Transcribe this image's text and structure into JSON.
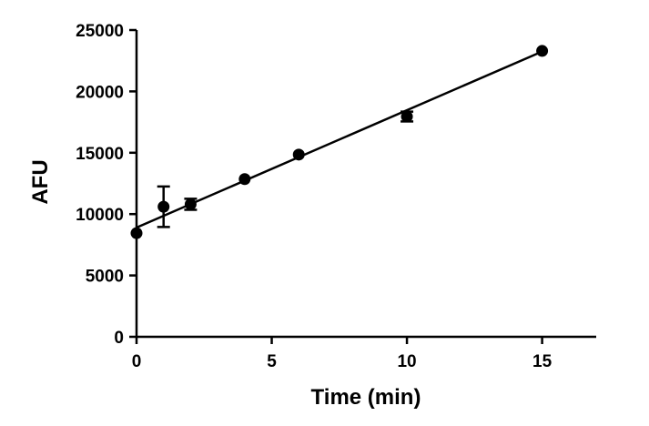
{
  "chart_data": {
    "type": "scatter",
    "title": "",
    "xlabel": "Time (min)",
    "ylabel": "AFU",
    "xlim": [
      0,
      17
    ],
    "ylim": [
      0,
      25000
    ],
    "xticks": [
      0,
      5,
      10,
      15
    ],
    "yticks": [
      0,
      5000,
      10000,
      15000,
      20000,
      25000
    ],
    "x_tick_labels": [
      "0",
      "5",
      "10",
      "15"
    ],
    "y_tick_labels": [
      "0",
      "5000",
      "10000",
      "15000",
      "20000",
      "25000"
    ],
    "grid": false,
    "legend": "none",
    "series": [
      {
        "x": [
          0,
          1,
          2,
          4,
          6,
          10,
          15
        ],
        "y": [
          8450,
          10600,
          10800,
          12850,
          14850,
          17950,
          23300
        ],
        "error": [
          0,
          1650,
          450,
          0,
          0,
          400,
          0
        ],
        "color": "#000000"
      }
    ],
    "fit_line": {
      "x": [
        0,
        15
      ],
      "y": [
        8900,
        23250
      ],
      "color": "#000000"
    }
  }
}
